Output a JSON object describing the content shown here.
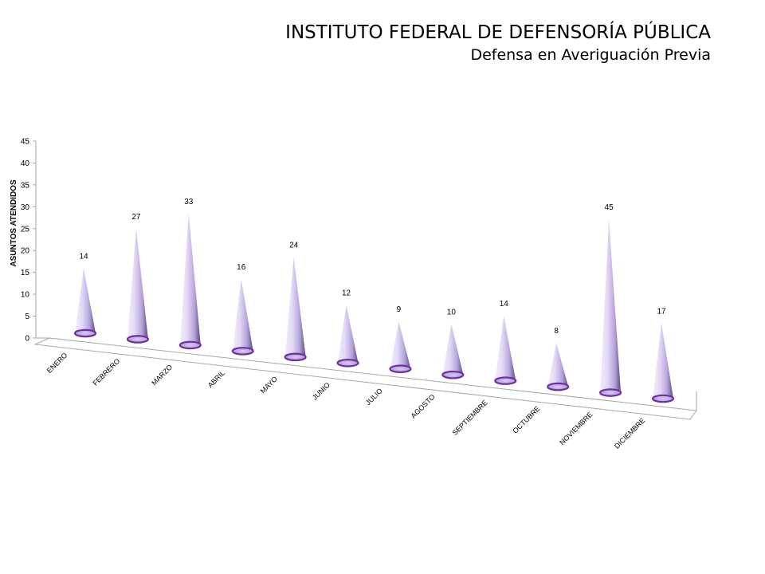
{
  "title": "INSTITUTO FEDERAL DE DEFENSORÍA PÚBLICA",
  "subtitle": "Defensa en Averiguación Previa",
  "chart_data": {
    "type": "bar",
    "shape": "cone",
    "categories": [
      "ENERO",
      "FEBRERO",
      "MARZO",
      "ABRIL",
      "MAYO",
      "JUNIO",
      "JULIO",
      "AGOSTO",
      "SEPTIEMBRE",
      "OCTUBRE",
      "NOVIEMBRE",
      "DICIEMBRE"
    ],
    "values": [
      14,
      27,
      33,
      16,
      24,
      12,
      9,
      10,
      14,
      8,
      45,
      17
    ],
    "ylabel": "ASUNTOS ATENDIDOS",
    "ylim": [
      0,
      45
    ],
    "yticks": [
      0,
      5,
      10,
      15,
      20,
      25,
      30,
      35,
      40,
      45
    ],
    "data_labels": true,
    "grid": false,
    "colors": {
      "cone_light": "#f1ecfb",
      "cone_mid": "#c3b3e3",
      "cone_dark": "#5b4a78",
      "base_rim": "#7030a0",
      "axis": "#a6a6a6"
    }
  }
}
